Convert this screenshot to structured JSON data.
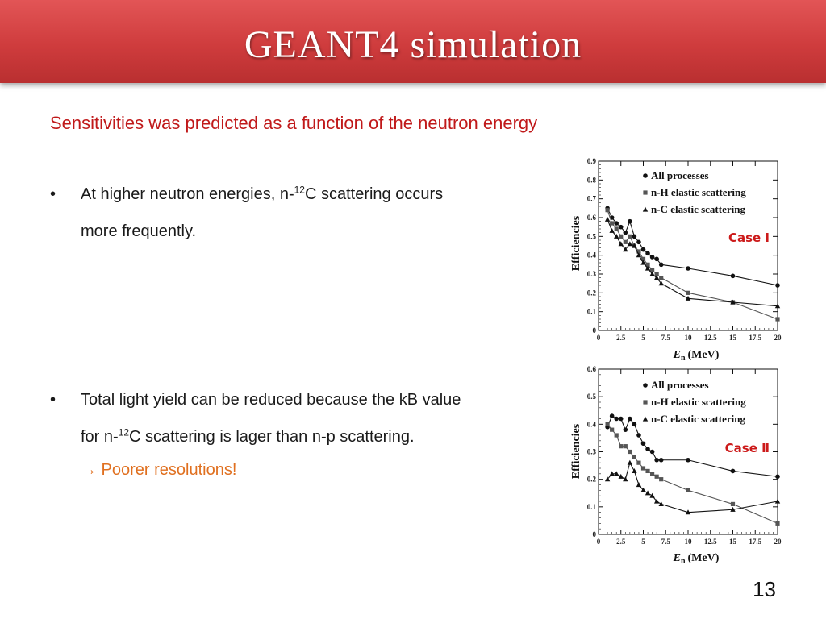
{
  "slide": {
    "title": "GEANT4 simulation",
    "subtitle": "Sensitivities was predicted as a function of the neutron energy",
    "bullet_char": "•",
    "bullet1": {
      "pre": "At higher neutron energies, n-",
      "sup": "12",
      "post": "C scattering occurs",
      "line2": "more frequently."
    },
    "bullet2": {
      "line1": "Total light yield can be reduced because the kB value",
      "pre": "for n-",
      "sup": "12",
      "post": "C scattering is lager than n-p scattering.",
      "line3": "→ Poorer resolutions!"
    },
    "page_number": "13",
    "colors": {
      "title_bar": "#cf3c3d",
      "subtitle": "#c0191a",
      "emphasis": "#e07020",
      "case_label": "#cc1a1a"
    }
  },
  "chart_data": [
    {
      "type": "line",
      "case_label": "Case Ⅰ",
      "ylabel": "Efficiencies",
      "xlabel_italic": "E",
      "xlabel_sub": "n",
      "xlabel_unit": "(MeV)",
      "xlim": [
        0,
        20
      ],
      "ylim": [
        0,
        0.9
      ],
      "x_ticks": [
        "0",
        "2.5",
        "5",
        "7.5",
        "10",
        "12.5",
        "15",
        "17.5",
        "20"
      ],
      "y_ticks": [
        "0",
        "0.1",
        "0.2",
        "0.3",
        "0.4",
        "0.5",
        "0.6",
        "0.7",
        "0.8",
        "0.9"
      ],
      "legend_position": "top-right",
      "series": [
        {
          "name": "All processes",
          "marker": "circle",
          "color": "#111111",
          "points": [
            [
              1,
              0.65
            ],
            [
              1.5,
              0.6
            ],
            [
              2,
              0.57
            ],
            [
              2.5,
              0.55
            ],
            [
              3,
              0.52
            ],
            [
              3.5,
              0.58
            ],
            [
              4,
              0.5
            ],
            [
              4.5,
              0.47
            ],
            [
              5,
              0.43
            ],
            [
              5.5,
              0.41
            ],
            [
              6,
              0.39
            ],
            [
              6.5,
              0.38
            ],
            [
              7,
              0.35
            ],
            [
              10,
              0.33
            ],
            [
              15,
              0.29
            ],
            [
              20,
              0.24
            ]
          ]
        },
        {
          "name": "n-H elastic scattering",
          "marker": "square",
          "color": "#555555",
          "points": [
            [
              1,
              0.64
            ],
            [
              1.5,
              0.57
            ],
            [
              2,
              0.54
            ],
            [
              2.5,
              0.5
            ],
            [
              3,
              0.47
            ],
            [
              3.5,
              0.5
            ],
            [
              4,
              0.45
            ],
            [
              4.5,
              0.42
            ],
            [
              5,
              0.38
            ],
            [
              5.5,
              0.35
            ],
            [
              6,
              0.32
            ],
            [
              6.5,
              0.3
            ],
            [
              7,
              0.28
            ],
            [
              10,
              0.2
            ],
            [
              15,
              0.15
            ],
            [
              20,
              0.06
            ]
          ]
        },
        {
          "name": "n-C elastic scattering",
          "marker": "triangle",
          "color": "#111111",
          "points": [
            [
              1,
              0.59
            ],
            [
              1.5,
              0.53
            ],
            [
              2,
              0.5
            ],
            [
              2.5,
              0.46
            ],
            [
              3,
              0.43
            ],
            [
              3.5,
              0.46
            ],
            [
              4,
              0.45
            ],
            [
              4.5,
              0.4
            ],
            [
              5,
              0.36
            ],
            [
              5.5,
              0.33
            ],
            [
              6,
              0.3
            ],
            [
              6.5,
              0.28
            ],
            [
              7,
              0.25
            ],
            [
              10,
              0.17
            ],
            [
              15,
              0.15
            ],
            [
              20,
              0.13
            ]
          ]
        }
      ]
    },
    {
      "type": "line",
      "case_label": "Case Ⅱ",
      "ylabel": "Efficiencies",
      "xlabel_italic": "E",
      "xlabel_sub": "n",
      "xlabel_unit": "(MeV)",
      "xlim": [
        0,
        20
      ],
      "ylim": [
        0,
        0.6
      ],
      "x_ticks": [
        "0",
        "2.5",
        "5",
        "7.5",
        "10",
        "12.5",
        "15",
        "17.5",
        "20"
      ],
      "y_ticks": [
        "0",
        "0.1",
        "0.2",
        "0.3",
        "0.4",
        "0.5",
        "0.6"
      ],
      "legend_position": "top-right",
      "series": [
        {
          "name": "All processes",
          "marker": "circle",
          "color": "#111111",
          "points": [
            [
              1,
              0.39
            ],
            [
              1.5,
              0.43
            ],
            [
              2,
              0.42
            ],
            [
              2.5,
              0.42
            ],
            [
              3,
              0.38
            ],
            [
              3.5,
              0.42
            ],
            [
              4,
              0.4
            ],
            [
              4.5,
              0.36
            ],
            [
              5,
              0.33
            ],
            [
              5.5,
              0.31
            ],
            [
              6,
              0.3
            ],
            [
              6.5,
              0.27
            ],
            [
              7,
              0.27
            ],
            [
              10,
              0.27
            ],
            [
              15,
              0.23
            ],
            [
              20,
              0.21
            ]
          ]
        },
        {
          "name": "n-H elastic scattering",
          "marker": "square",
          "color": "#555555",
          "points": [
            [
              1,
              0.4
            ],
            [
              1.5,
              0.38
            ],
            [
              2,
              0.36
            ],
            [
              2.5,
              0.32
            ],
            [
              3,
              0.32
            ],
            [
              3.5,
              0.3
            ],
            [
              4,
              0.28
            ],
            [
              4.5,
              0.26
            ],
            [
              5,
              0.24
            ],
            [
              5.5,
              0.23
            ],
            [
              6,
              0.22
            ],
            [
              6.5,
              0.21
            ],
            [
              7,
              0.2
            ],
            [
              10,
              0.16
            ],
            [
              15,
              0.11
            ],
            [
              20,
              0.04
            ]
          ]
        },
        {
          "name": "n-C elastic scattering",
          "marker": "triangle",
          "color": "#111111",
          "points": [
            [
              1,
              0.2
            ],
            [
              1.5,
              0.22
            ],
            [
              2,
              0.22
            ],
            [
              2.5,
              0.21
            ],
            [
              3,
              0.2
            ],
            [
              3.5,
              0.26
            ],
            [
              4,
              0.23
            ],
            [
              4.5,
              0.18
            ],
            [
              5,
              0.16
            ],
            [
              5.5,
              0.15
            ],
            [
              6,
              0.14
            ],
            [
              6.5,
              0.12
            ],
            [
              7,
              0.11
            ],
            [
              10,
              0.08
            ],
            [
              15,
              0.09
            ],
            [
              20,
              0.12
            ]
          ]
        }
      ]
    }
  ]
}
